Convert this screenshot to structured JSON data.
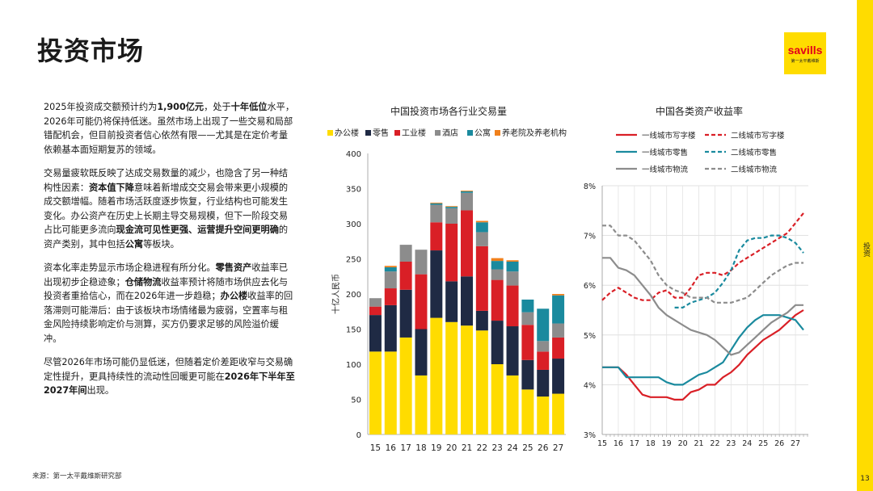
{
  "page": {
    "title": "投资市场",
    "logo_brand": "savills",
    "logo_sub": "第一太平戴维斯",
    "side_label": "投资",
    "page_number": "13",
    "source": "来源：第一太平戴维斯研究部"
  },
  "body": {
    "p1": [
      {
        "t": "2025年投资成交额预计约为"
      },
      {
        "t": "1,900亿元",
        "b": true
      },
      {
        "t": "，处于"
      },
      {
        "t": "十年低位",
        "b": true
      },
      {
        "t": "水平，2026年可能仍将保持低迷。虽然市场上出现了一些交易和局部错配机会，但目前投资者信心依然有限——尤其是在定价考量依赖基本面短期复苏的领域。"
      }
    ],
    "p2": [
      {
        "t": "交易量疲软既反映了达成交易数量的减少，也隐含了另一种结构性因素："
      },
      {
        "t": "资本值下降",
        "b": true
      },
      {
        "t": "意味着新增成交交易会带来更小规模的成交额增幅。随着市场活跃度逐步恢复，行业结构也可能发生变化。办公资产在历史上长期主导交易规模，但下一阶段交易占比可能更多流向"
      },
      {
        "t": "现金流可见性更强、运营提升空间更明确",
        "b": true
      },
      {
        "t": "的资产类别，其中包括"
      },
      {
        "t": "公寓",
        "b": true
      },
      {
        "t": "等板块。"
      }
    ],
    "p3": [
      {
        "t": "资本化率走势显示市场企稳进程有所分化。"
      },
      {
        "t": "零售资产",
        "b": true
      },
      {
        "t": "收益率已出现初步企稳迹象；"
      },
      {
        "t": "仓储物流",
        "b": true
      },
      {
        "t": "收益率预计将随市场供应去化与投资者重拾信心，而在2026年进一步趋稳；"
      },
      {
        "t": "办公楼",
        "b": true
      },
      {
        "t": "收益率的回落滞则可能滞后：由于该板块市场情绪最为疲弱，空置率与租金风险持续影响定价与测算，买方仍要求足够的风险溢价缓冲。"
      }
    ],
    "p4": [
      {
        "t": "尽管2026年市场可能仍显低迷，但随着定价差距收窄与交易确定性提升，更具持续性的流动性回暖更可能在"
      },
      {
        "t": "2026年下半年至2027年间",
        "b": true
      },
      {
        "t": "出现。"
      }
    ]
  },
  "chart_data": [
    {
      "type": "bar",
      "stacked": true,
      "title": "中国投资市场各行业交易量",
      "ylabel": "十亿人民币",
      "ylim": [
        0,
        400
      ],
      "yticks": [
        0,
        50,
        100,
        150,
        200,
        250,
        300,
        350,
        400
      ],
      "categories": [
        "15",
        "16",
        "17",
        "18",
        "19",
        "20",
        "21",
        "22",
        "23",
        "24",
        "25",
        "26",
        "27"
      ],
      "legend_position": "top",
      "series": [
        {
          "name": "办公楼",
          "color": "#FFDC00",
          "values": [
            118,
            118,
            138,
            84,
            166,
            160,
            155,
            148,
            100,
            84,
            64,
            54,
            58
          ]
        },
        {
          "name": "零售",
          "color": "#1f2a44",
          "values": [
            52,
            66,
            68,
            66,
            96,
            58,
            70,
            28,
            62,
            70,
            42,
            38,
            50
          ]
        },
        {
          "name": "工业楼",
          "color": "#d91f26",
          "values": [
            12,
            24,
            40,
            78,
            40,
            82,
            94,
            92,
            58,
            58,
            50,
            26,
            30
          ]
        },
        {
          "name": "酒店",
          "color": "#8c8c8c",
          "values": [
            12,
            24,
            24,
            35,
            25,
            22,
            25,
            20,
            15,
            20,
            18,
            15,
            20
          ]
        },
        {
          "name": "公寓",
          "color": "#1a8a9e",
          "values": [
            0,
            6,
            0,
            0,
            2,
            2,
            2,
            14,
            12,
            14,
            18,
            46,
            40
          ]
        },
        {
          "name": "养老院及养老机构",
          "color": "#f0801c",
          "values": [
            0,
            2,
            0,
            0,
            1,
            1,
            1,
            2,
            4,
            2,
            0,
            0,
            2
          ]
        }
      ]
    },
    {
      "type": "line",
      "title": "中国各类资产收益率",
      "ylim": [
        3,
        8
      ],
      "yticks": [
        "3%",
        "4%",
        "5%",
        "6%",
        "7%",
        "8%"
      ],
      "xticks": [
        "15",
        "16",
        "17",
        "18",
        "19",
        "20",
        "21",
        "22",
        "23",
        "24",
        "25",
        "26",
        "27"
      ],
      "x": [
        15.0,
        15.5,
        16.0,
        16.5,
        17.0,
        17.5,
        18.0,
        18.5,
        19.0,
        19.5,
        20.0,
        20.5,
        21.0,
        21.5,
        22.0,
        22.5,
        23.0,
        23.5,
        24.0,
        24.5,
        25.0,
        25.5,
        26.0,
        26.5,
        27.0,
        27.5
      ],
      "grid": true,
      "series": [
        {
          "name": "一线城市写字楼",
          "color": "#d91f26",
          "dash": false,
          "values": [
            4.35,
            4.35,
            4.35,
            4.2,
            4.0,
            3.8,
            3.75,
            3.75,
            3.75,
            3.7,
            3.7,
            3.85,
            3.9,
            4.0,
            4.0,
            4.15,
            4.25,
            4.4,
            4.6,
            4.75,
            4.9,
            5.0,
            5.1,
            5.25,
            5.4,
            5.5
          ]
        },
        {
          "name": "二线城市写字楼",
          "color": "#d91f26",
          "dash": true,
          "values": [
            5.7,
            5.85,
            5.95,
            5.85,
            5.75,
            5.7,
            5.7,
            5.85,
            5.9,
            5.75,
            5.75,
            5.95,
            6.2,
            6.25,
            6.25,
            6.2,
            6.3,
            6.45,
            6.55,
            6.65,
            6.75,
            6.85,
            6.95,
            7.05,
            7.25,
            7.45
          ]
        },
        {
          "name": "一线城市零售",
          "color": "#1a8a9e",
          "dash": false,
          "values": [
            4.35,
            4.35,
            4.35,
            4.15,
            4.15,
            4.15,
            4.15,
            4.15,
            4.05,
            4.0,
            4.0,
            4.1,
            4.2,
            4.25,
            4.35,
            4.45,
            4.7,
            4.95,
            5.15,
            5.3,
            5.4,
            5.4,
            5.4,
            5.35,
            5.3,
            5.1
          ]
        },
        {
          "name": "二线城市零售",
          "color": "#1a8a9e",
          "dash": true,
          "values": [
            null,
            null,
            null,
            null,
            null,
            null,
            null,
            null,
            null,
            5.55,
            5.55,
            5.65,
            5.7,
            5.75,
            5.85,
            6.05,
            6.3,
            6.7,
            6.9,
            6.95,
            6.95,
            7.0,
            7.0,
            6.95,
            6.85,
            6.65
          ]
        },
        {
          "name": "一线城市物流",
          "color": "#8c8c8c",
          "dash": false,
          "values": [
            6.55,
            6.55,
            6.35,
            6.3,
            6.2,
            6.0,
            5.8,
            5.55,
            5.4,
            5.3,
            5.2,
            5.1,
            5.05,
            5.0,
            4.9,
            4.75,
            4.6,
            4.65,
            4.8,
            4.95,
            5.1,
            5.25,
            5.35,
            5.45,
            5.6,
            5.6
          ]
        },
        {
          "name": "二线城市物流",
          "color": "#8c8c8c",
          "dash": true,
          "values": [
            7.2,
            7.2,
            7.0,
            7.0,
            6.9,
            6.7,
            6.5,
            6.2,
            6.0,
            5.9,
            5.85,
            5.75,
            5.75,
            5.75,
            5.65,
            5.65,
            5.65,
            5.7,
            5.75,
            5.9,
            6.05,
            6.2,
            6.3,
            6.4,
            6.45,
            6.45
          ]
        }
      ]
    }
  ]
}
